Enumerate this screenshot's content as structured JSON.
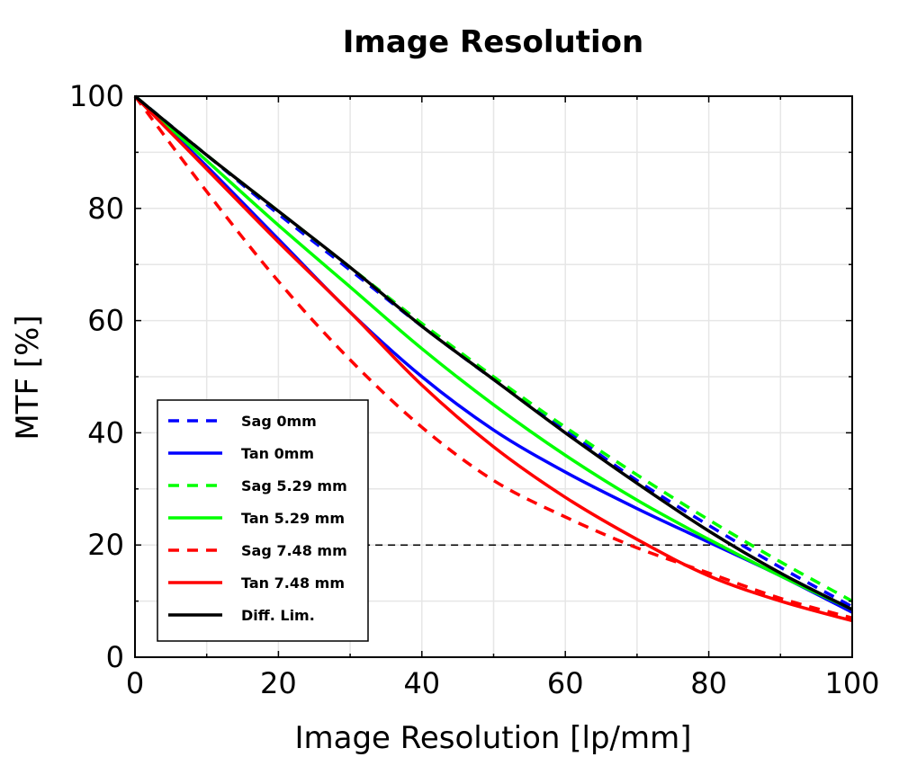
{
  "chart_data": {
    "type": "line",
    "title": "Image Resolution",
    "xlabel": "Image Resolution [lp/mm]",
    "ylabel": "MTF [%]",
    "xlim": [
      0,
      100
    ],
    "ylim": [
      0,
      100
    ],
    "xticks": [
      "0",
      "20",
      "40",
      "60",
      "80",
      "100"
    ],
    "yticks": [
      "0",
      "20",
      "40",
      "60",
      "80",
      "100"
    ],
    "grid": true,
    "legend_position": "bottom-left",
    "reference_line": {
      "y": 20,
      "x_start": 30,
      "x_end": 100,
      "style": "dashed",
      "color": "#000000"
    },
    "series": [
      {
        "name": "Sag 0mm",
        "color": "#0000ff",
        "dashed": true,
        "x": [
          0,
          10,
          20,
          30,
          40,
          50,
          60,
          70,
          80,
          90,
          100
        ],
        "y": [
          100,
          89.5,
          79,
          69,
          59,
          49.5,
          40.5,
          31.5,
          23.5,
          16,
          9
        ]
      },
      {
        "name": "Tan 0mm",
        "color": "#0000ff",
        "dashed": false,
        "x": [
          0,
          10,
          20,
          30,
          40,
          50,
          60,
          70,
          80,
          90,
          100
        ],
        "y": [
          100,
          87.5,
          74.5,
          61.5,
          50,
          40.5,
          33,
          26.5,
          20.5,
          14.5,
          8
        ]
      },
      {
        "name": "Sag 5.29 mm",
        "color": "#00ff00",
        "dashed": true,
        "x": [
          0,
          10,
          20,
          30,
          40,
          50,
          60,
          70,
          80,
          90,
          100
        ],
        "y": [
          100,
          89.5,
          79.5,
          69.5,
          59.5,
          50,
          41,
          32.5,
          24.5,
          17,
          10
        ]
      },
      {
        "name": "Tan 5.29 mm",
        "color": "#00ff00",
        "dashed": false,
        "x": [
          0,
          10,
          20,
          30,
          40,
          50,
          60,
          70,
          80,
          90,
          100
        ],
        "y": [
          100,
          88.5,
          77,
          66,
          55,
          45,
          36,
          28,
          21,
          14.5,
          8.5
        ]
      },
      {
        "name": "Sag 7.48 mm",
        "color": "#ff0000",
        "dashed": true,
        "x": [
          0,
          10,
          20,
          30,
          40,
          50,
          60,
          70,
          80,
          90,
          100
        ],
        "y": [
          100,
          83,
          67,
          53,
          41,
          31.5,
          25,
          19.5,
          15,
          10.5,
          7
        ]
      },
      {
        "name": "Tan 7.48 mm",
        "color": "#ff0000",
        "dashed": false,
        "x": [
          0,
          10,
          20,
          30,
          40,
          50,
          60,
          70,
          80,
          90,
          100
        ],
        "y": [
          100,
          87,
          74,
          61.5,
          48.5,
          37.5,
          28.5,
          21,
          14.5,
          10,
          6.5
        ]
      },
      {
        "name": "Diff. Lim.",
        "color": "#000000",
        "dashed": false,
        "x": [
          0,
          10,
          20,
          30,
          40,
          50,
          60,
          70,
          80,
          90,
          100
        ],
        "y": [
          100,
          89.5,
          79.5,
          69.5,
          59,
          49.5,
          40,
          31,
          22.5,
          15,
          8.5
        ]
      }
    ]
  }
}
